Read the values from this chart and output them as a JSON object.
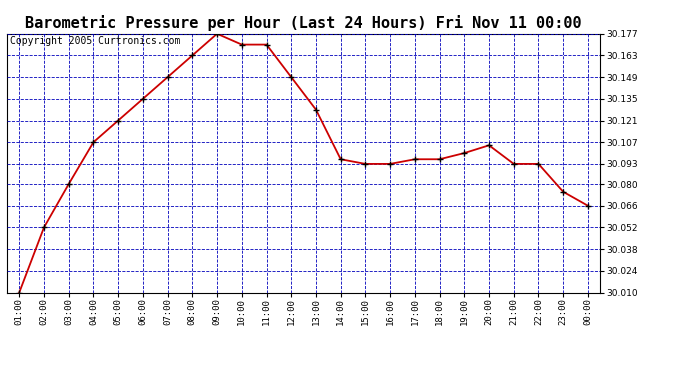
{
  "title": "Barometric Pressure per Hour (Last 24 Hours) Fri Nov 11 00:00",
  "copyright": "Copyright 2005 Curtronics.com",
  "x_labels": [
    "01:00",
    "02:00",
    "03:00",
    "04:00",
    "05:00",
    "06:00",
    "07:00",
    "08:00",
    "09:00",
    "10:00",
    "11:00",
    "12:00",
    "13:00",
    "14:00",
    "15:00",
    "16:00",
    "17:00",
    "18:00",
    "19:00",
    "20:00",
    "21:00",
    "22:00",
    "23:00",
    "00:00"
  ],
  "y_values": [
    30.01,
    30.052,
    30.08,
    30.107,
    30.121,
    30.135,
    30.149,
    30.163,
    30.177,
    30.17,
    30.17,
    30.149,
    30.128,
    30.096,
    30.093,
    30.093,
    30.096,
    30.096,
    30.1,
    30.105,
    30.093,
    30.093,
    30.075,
    30.066
  ],
  "y_ticks": [
    30.01,
    30.024,
    30.038,
    30.052,
    30.066,
    30.08,
    30.093,
    30.107,
    30.121,
    30.135,
    30.149,
    30.163,
    30.177
  ],
  "y_min": 30.01,
  "y_max": 30.177,
  "line_color": "#cc0000",
  "marker_color": "#000000",
  "bg_color": "#ffffff",
  "grid_color": "#0000bb",
  "title_fontsize": 11,
  "copyright_fontsize": 7
}
